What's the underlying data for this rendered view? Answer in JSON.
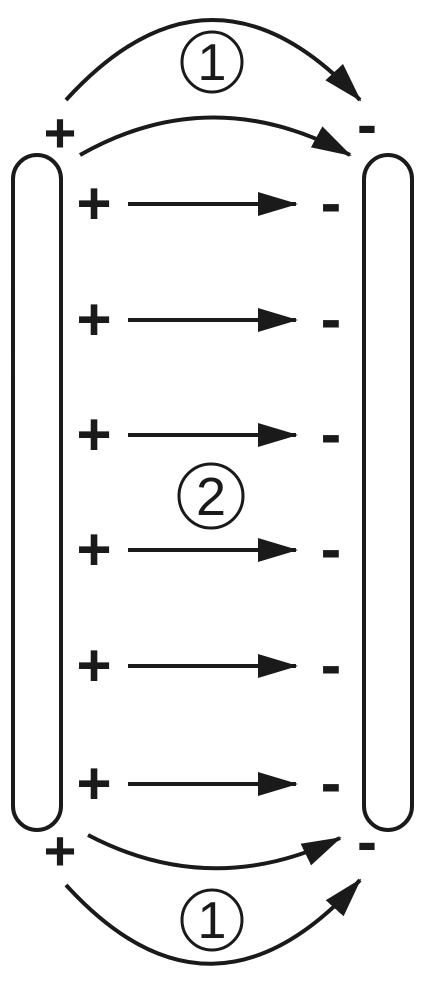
{
  "labels": {
    "outer_top": "1",
    "inner": "2",
    "outer_bottom": "1"
  },
  "signs": {
    "plus": "+",
    "minus": "-"
  },
  "field_line_rows": 6,
  "colors": {
    "ink": "#1a1a1a",
    "background": "#ffffff"
  }
}
